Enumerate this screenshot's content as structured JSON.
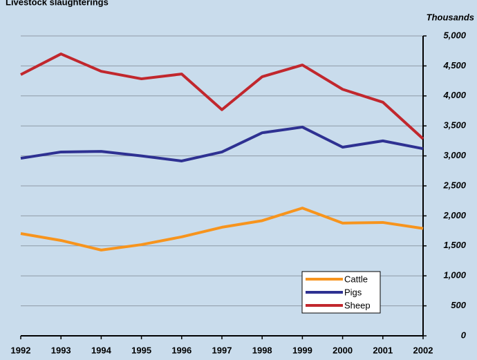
{
  "chart_data": {
    "type": "line",
    "title": "Livestock slaughterings",
    "y_axis_label": "Thousands",
    "x": [
      1992,
      1993,
      1994,
      1995,
      1996,
      1997,
      1998,
      1999,
      2000,
      2001,
      2002
    ],
    "xlim": [
      1992,
      2002
    ],
    "xticks": [
      1992,
      1993,
      1994,
      1995,
      1996,
      1997,
      1998,
      1999,
      2000,
      2001,
      2002
    ],
    "ylim": [
      0,
      5000
    ],
    "yticks": [
      0,
      500,
      {
        "value": 1000,
        "label": "1,000"
      },
      {
        "value": 1500,
        "label": "1,500"
      },
      {
        "value": 2000,
        "label": "2,000"
      },
      {
        "value": 2500,
        "label": "2,500"
      },
      {
        "value": 3000,
        "label": "3,000"
      },
      {
        "value": 3500,
        "label": "3,500"
      },
      {
        "value": 4000,
        "label": "4,000"
      },
      {
        "value": 4500,
        "label": "4,500"
      },
      {
        "value": 5000,
        "label": "5,000"
      }
    ],
    "grid": true,
    "series": [
      {
        "name": "Cattle",
        "color": "#f7941d",
        "values": [
          1705,
          1590,
          1430,
          1520,
          1650,
          1810,
          1920,
          2130,
          1880,
          1890,
          1790
        ]
      },
      {
        "name": "Pigs",
        "color": "#2e3192",
        "values": [
          2960,
          3065,
          3075,
          3000,
          2915,
          3065,
          3385,
          3480,
          3145,
          3250,
          3120
        ]
      },
      {
        "name": "Sheep",
        "color": "#c1272d",
        "values": [
          4355,
          4700,
          4410,
          4285,
          4365,
          3770,
          4320,
          4515,
          4110,
          3895,
          3285
        ]
      }
    ]
  }
}
